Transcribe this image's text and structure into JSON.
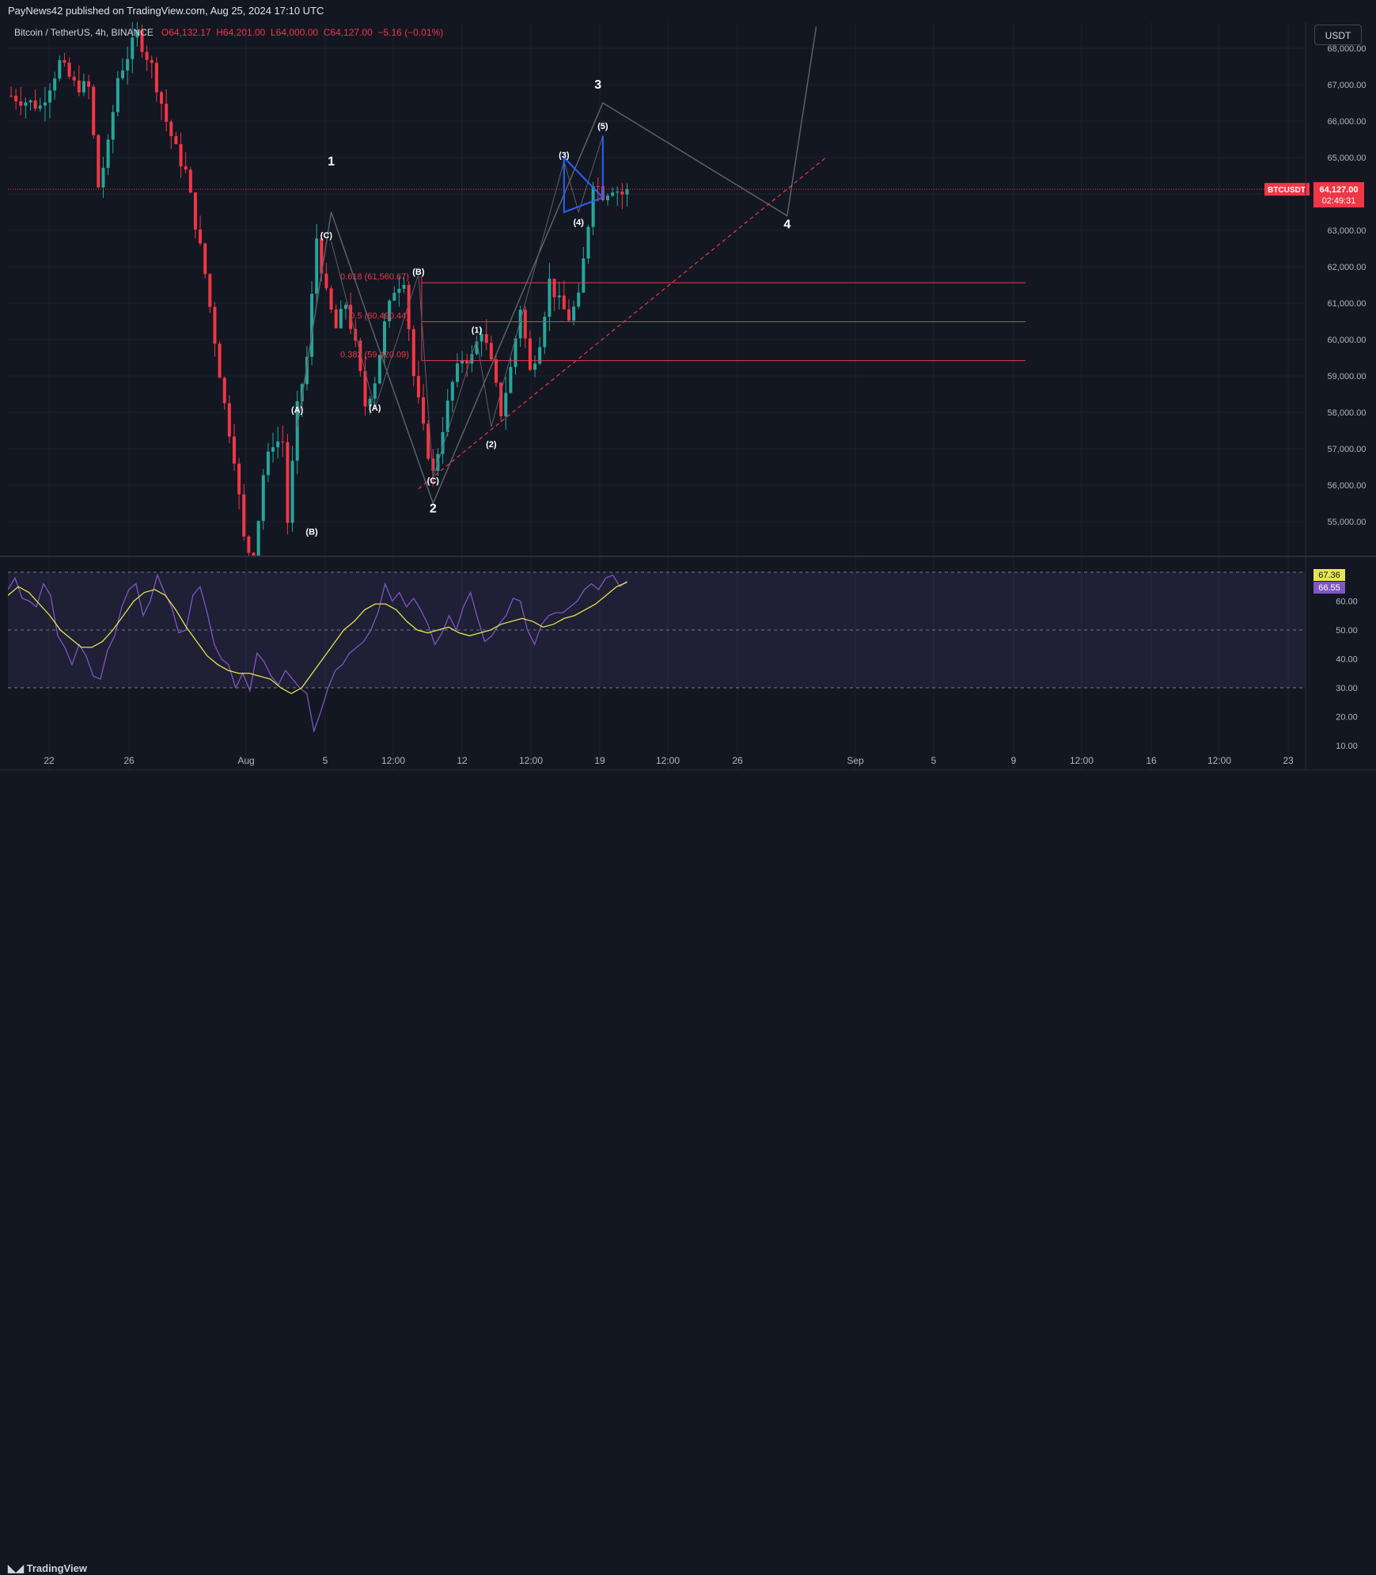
{
  "header": {
    "publisher": "PayNews42 published on TradingView.com, Aug 25, 2024 17:10 UTC"
  },
  "symbol": {
    "name": "Bitcoin / TetherUS, 4h, BINANCE",
    "open": "O64,132.17",
    "high": "H64,201.00",
    "low": "L64,000.00",
    "close": "C64,127.00",
    "change": "−5.16 (−0.01%)"
  },
  "currency_button": "USDT",
  "footer": {
    "logo_text": "TradingView"
  },
  "colors": {
    "background": "#131722",
    "up": "#26a69a",
    "down": "#f23645",
    "fib": "#f23645",
    "triangle": "#2962ff",
    "rsi": "#7e57c2",
    "rsi_ma": "#e5e54d",
    "wave_path": "#5d606b"
  },
  "chart_data": [
    {
      "type": "candlestick",
      "title": "Bitcoin / TetherUS, 4h, BINANCE",
      "y_axis": {
        "ylim": [
          54000,
          68500
        ],
        "ticks": [
          55000,
          56000,
          57000,
          58000,
          59000,
          60000,
          61000,
          62000,
          63000,
          64000,
          65000,
          66000,
          67000,
          68000
        ],
        "tick_labels": [
          "55,000.00",
          "56,000.00",
          "57,000.00",
          "58,000.00",
          "59,000.00",
          "60,000.00",
          "61,000.00",
          "62,000.00",
          "63,000.00",
          "",
          "65,000.00",
          "66,000.00",
          "67,000.00",
          "68,000.00"
        ]
      },
      "x_axis": {
        "tick_labels": [
          "22",
          "26",
          "Aug",
          "5",
          "12:00",
          "12",
          "12:00",
          "19",
          "12:00",
          "26",
          "Sep",
          "5",
          "9",
          "12:00",
          "16",
          "12:00",
          "23"
        ]
      },
      "price_path": [
        [
          0,
          66700
        ],
        [
          6,
          66400
        ],
        [
          10,
          67600
        ],
        [
          13,
          67000
        ],
        [
          16,
          66900
        ],
        [
          18,
          64200
        ],
        [
          20,
          65300
        ],
        [
          22,
          67200
        ],
        [
          26,
          68400
        ],
        [
          29,
          67500
        ],
        [
          32,
          66000
        ],
        [
          34,
          65200
        ],
        [
          36,
          64600
        ],
        [
          40,
          61800
        ],
        [
          42,
          60000
        ],
        [
          44,
          58200
        ],
        [
          46,
          56800
        ],
        [
          48,
          54500
        ],
        [
          50,
          53900
        ],
        [
          52,
          56300
        ],
        [
          54,
          57200
        ],
        [
          56,
          57200
        ],
        [
          57,
          55000
        ],
        [
          59,
          58100
        ],
        [
          61,
          59500
        ],
        [
          63,
          62800
        ],
        [
          65,
          61200
        ],
        [
          67,
          60300
        ],
        [
          69,
          61000
        ],
        [
          71,
          59800
        ],
        [
          73,
          58200
        ],
        [
          75,
          58900
        ],
        [
          77,
          60400
        ],
        [
          79,
          61400
        ],
        [
          81,
          61700
        ],
        [
          83,
          59000
        ],
        [
          85,
          57500
        ],
        [
          87,
          56300
        ],
        [
          89,
          57600
        ],
        [
          91,
          58800
        ],
        [
          93,
          59500
        ],
        [
          95,
          59500
        ],
        [
          97,
          60300
        ],
        [
          99,
          59300
        ],
        [
          101,
          58000
        ],
        [
          103,
          59200
        ],
        [
          105,
          60900
        ],
        [
          107,
          59100
        ],
        [
          109,
          60000
        ],
        [
          111,
          61600
        ],
        [
          113,
          61000
        ],
        [
          115,
          60600
        ],
        [
          117,
          61100
        ],
        [
          119,
          63200
        ],
        [
          120,
          64400
        ],
        [
          122,
          64000
        ],
        [
          124,
          64200
        ],
        [
          126,
          64000
        ],
        [
          127,
          64127
        ]
      ],
      "current_price": {
        "symbol": "BTCUSDT",
        "value": 64127,
        "label": "64,127.00",
        "countdown": "02:49:31"
      },
      "fibonacci": [
        {
          "label": "0.618 (61,560.67)",
          "price": 61560.67
        },
        {
          "label": "0.5 (60,490.44)",
          "price": 60490.44
        },
        {
          "label": "0.382 (59,420.09)",
          "price": 59420.09
        }
      ],
      "wave_labels": [
        {
          "text": "1",
          "major": true,
          "bar": 66,
          "price": 64700,
          "pos": "above"
        },
        {
          "text": "2",
          "major": true,
          "bar": 87,
          "price": 55600,
          "pos": "below"
        },
        {
          "text": "3",
          "major": true,
          "bar": 121,
          "price": 66800,
          "pos": "above"
        },
        {
          "text": "4",
          "major": true,
          "bar": 160,
          "price": 63400,
          "pos": "below"
        },
        {
          "text": "(A)",
          "major": false,
          "bar": 59,
          "price": 57900,
          "pos": "above"
        },
        {
          "text": "(B)",
          "major": false,
          "bar": 62,
          "price": 54900,
          "pos": "below"
        },
        {
          "text": "(C)",
          "major": false,
          "bar": 65,
          "price": 62700,
          "pos": "above"
        },
        {
          "text": "(A)",
          "major": false,
          "bar": 75,
          "price": 58300,
          "pos": "below"
        },
        {
          "text": "(B)",
          "major": false,
          "bar": 84,
          "price": 61700,
          "pos": "above"
        },
        {
          "text": "(C)",
          "major": false,
          "bar": 87,
          "price": 56300,
          "pos": "below"
        },
        {
          "text": "(1)",
          "major": false,
          "bar": 96,
          "price": 60100,
          "pos": "above"
        },
        {
          "text": "(2)",
          "major": false,
          "bar": 99,
          "price": 57300,
          "pos": "below"
        },
        {
          "text": "(3)",
          "major": false,
          "bar": 114,
          "price": 64900,
          "pos": "above"
        },
        {
          "text": "(4)",
          "major": false,
          "bar": 117,
          "price": 63400,
          "pos": "below"
        },
        {
          "text": "(5)",
          "major": false,
          "bar": 122,
          "price": 65700,
          "pos": "above"
        }
      ],
      "projection_path": [
        [
          59,
          57600
        ],
        [
          66,
          63500
        ],
        [
          87,
          55500
        ],
        [
          122,
          66500
        ],
        [
          160,
          63400
        ],
        [
          166,
          68600
        ]
      ],
      "sub_wave_path": [
        [
          66,
          62700
        ],
        [
          75,
          58100
        ],
        [
          84,
          61800
        ],
        [
          87,
          56200
        ],
        [
          96,
          60000
        ],
        [
          99,
          57600
        ],
        [
          114,
          64900
        ],
        [
          117,
          63500
        ],
        [
          122,
          65600
        ]
      ],
      "triangle": {
        "top": [
          114,
          65000
        ],
        "bottom": [
          114,
          63500
        ],
        "apex": [
          122,
          63900
        ],
        "breakout": [
          122,
          65600
        ]
      },
      "trendline": {
        "from": [
          84,
          55900
        ],
        "to": [
          168,
          65000
        ]
      }
    },
    {
      "type": "line",
      "title": "RSI",
      "ylim": [
        7,
        70
      ],
      "tick_labels": [
        "10.00",
        "20.00",
        "30.00",
        "40.00",
        "50.00",
        "60.00"
      ],
      "ticks": [
        10,
        20,
        30,
        40,
        50,
        60
      ],
      "levels": [
        70,
        50,
        30
      ],
      "series": [
        {
          "values": [
            64,
            68,
            61,
            60,
            58,
            66,
            62,
            48,
            44,
            38,
            45,
            41,
            34,
            33,
            43,
            48,
            58,
            64,
            66,
            55,
            60,
            69,
            63,
            58,
            49,
            50,
            62,
            65,
            56,
            45,
            40,
            38,
            30,
            35,
            29,
            42,
            39,
            34,
            31,
            36,
            33,
            30,
            28,
            15,
            22,
            30,
            36,
            38,
            42,
            44,
            46,
            50,
            56,
            66,
            60,
            63,
            58,
            61,
            57,
            52,
            45,
            49,
            55,
            50,
            58,
            63,
            54,
            46,
            48,
            52,
            55,
            61,
            60,
            50,
            45,
            52,
            55,
            56,
            56,
            58,
            60,
            64,
            66,
            64,
            68,
            69,
            65,
            67
          ]
        },
        {
          "values": [
            62,
            65,
            63,
            59,
            55,
            50,
            47,
            44,
            44,
            46,
            50,
            55,
            60,
            63,
            64,
            62,
            57,
            51,
            46,
            41,
            38,
            36,
            35,
            35,
            34,
            33,
            30,
            28,
            30,
            35,
            40,
            45,
            50,
            53,
            57,
            59,
            59,
            57,
            53,
            50,
            49,
            50,
            51,
            49,
            48,
            49,
            50,
            52,
            53,
            54,
            53,
            51,
            52,
            54,
            55,
            57,
            59,
            62,
            65,
            66.55
          ]
        }
      ],
      "last_values": [
        {
          "label": "67.36",
          "color": "#e5e54d"
        },
        {
          "label": "66.55",
          "color": "#7e57c2"
        }
      ]
    }
  ]
}
